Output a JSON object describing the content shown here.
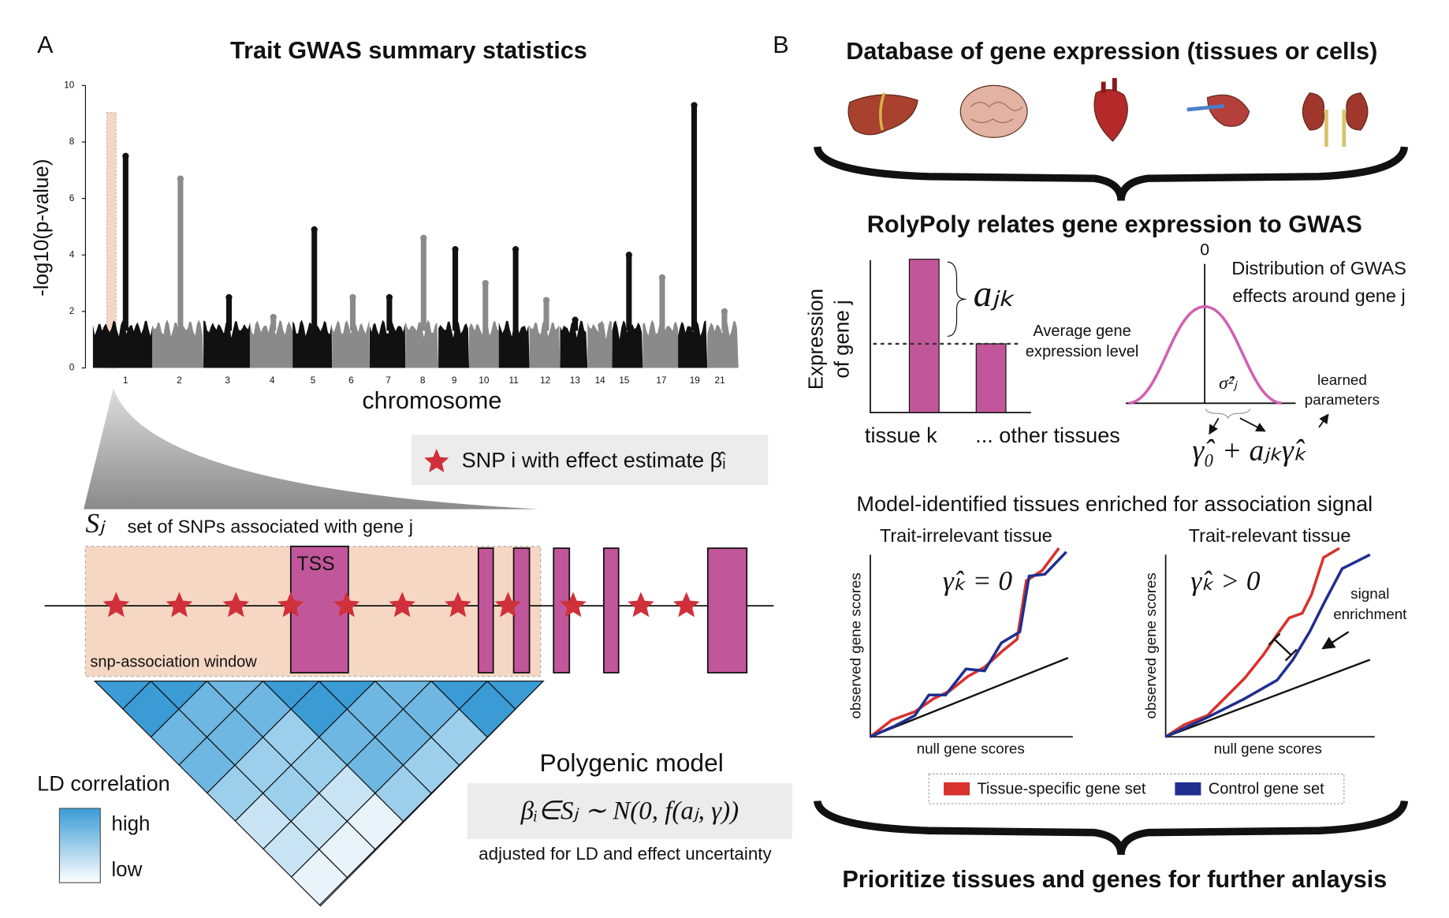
{
  "panel_a": {
    "label": "A",
    "title": "Trait GWAS summary statistics",
    "manhattan": {
      "y_label": "-log10(p-value)",
      "x_label": "chromosome",
      "ylim": [
        0,
        10
      ],
      "yticks": [
        0,
        2,
        4,
        6,
        8,
        10
      ],
      "chromosomes": [
        "1",
        "2",
        "3",
        "4",
        "5",
        "6",
        "7",
        "8",
        "9",
        "10",
        "11",
        "12",
        "13",
        "14",
        "15",
        "17",
        "19",
        "21"
      ],
      "peaks": [
        7.5,
        6.7,
        2.5,
        1.8,
        4.9,
        2.5,
        2.5,
        4.6,
        4.2,
        3.0,
        4.2,
        2.4,
        1.7,
        1.5,
        4.0,
        3.2,
        9.3,
        2.0
      ]
    },
    "snp_legend": "SNP i with effect estimate β̂ᵢ",
    "set_symbol": "Sⱼ",
    "set_text": "set of SNPs associated with gene j",
    "tss": "TSS",
    "window_label": "snp-association window",
    "ld_title": "LD correlation",
    "ld_high": "high",
    "ld_low": "low",
    "model_title": "Polygenic model",
    "model_formula": "βᵢ∈Sⱼ ∼ N(0, f(aⱼ, γ))",
    "model_note": "adjusted for LD and effect uncertainty"
  },
  "panel_b": {
    "label": "B",
    "title": "Database of gene expression (tissues or cells)",
    "subtitle": "RolyPoly relates gene expression to GWAS",
    "expr_label_1": "Expression",
    "expr_label_2": "of gene j",
    "ajk": "aⱼₖ",
    "avg_1": "Average gene",
    "avg_2": "expression level",
    "tissue_k": "tissue k",
    "other": "... other tissues",
    "zero": "0",
    "dist_1": "Distribution of GWAS",
    "dist_2": "effects around gene j",
    "sigma": "σ̂²ⱼ",
    "learned_1": "learned",
    "learned_2": "parameters",
    "param_formula": "γ̂₀ + aⱼₖγ̂ₖ",
    "enrich_title": "Model-identified tissues enriched for association signal",
    "left_title": "Trait-irrelevant tissue",
    "right_title": "Trait-relevant tissue",
    "left_gamma": "γ̂ₖ = 0",
    "right_gamma": "γ̂ₖ > 0",
    "y_axis": "observed gene scores",
    "x_axis": "null gene scores",
    "signal_1": "signal",
    "signal_2": "enrichment",
    "legend": [
      {
        "name": "Tissue-specific gene set",
        "color": "#d7322e"
      },
      {
        "name": "Control gene set",
        "color": "#1f2f8f"
      }
    ],
    "footer": "Prioritize tissues and genes for further anlaysis"
  }
}
